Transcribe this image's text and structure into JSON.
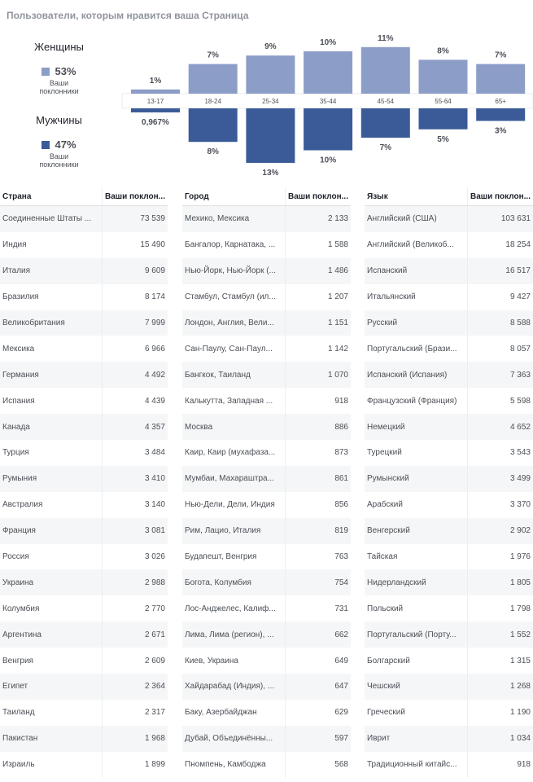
{
  "page_title": "Пользователи, которым нравится ваша Страница",
  "colors": {
    "women": "#8c9dc8",
    "men": "#3b5b98",
    "text": "#4b4f56"
  },
  "women": {
    "label": "Женщины",
    "percent": "53%",
    "sub1": "Ваши",
    "sub2": "поклонники"
  },
  "men": {
    "label": "Мужчины",
    "percent": "47%",
    "sub1": "Ваши",
    "sub2": "поклонники"
  },
  "chart_data": {
    "type": "bar",
    "categories": [
      "13-17",
      "18-24",
      "25-34",
      "35-44",
      "45-54",
      "55-64",
      "65+"
    ],
    "series": [
      {
        "name": "Женщины",
        "values": [
          1,
          7,
          9,
          10,
          11,
          8,
          7
        ],
        "labels": [
          "1%",
          "7%",
          "9%",
          "10%",
          "11%",
          "8%",
          "7%"
        ]
      },
      {
        "name": "Мужчины",
        "values": [
          0.967,
          8,
          13,
          10,
          7,
          5,
          3
        ],
        "labels": [
          "0,967%",
          "8%",
          "13%",
          "10%",
          "7%",
          "5%",
          "3%"
        ]
      }
    ]
  },
  "tables": [
    {
      "col1": "Страна",
      "col2": "Ваши поклон...",
      "rows": [
        [
          "Соединенные Штаты ...",
          "73 539"
        ],
        [
          "Индия",
          "15 490"
        ],
        [
          "Италия",
          "9 609"
        ],
        [
          "Бразилия",
          "8 174"
        ],
        [
          "Великобритания",
          "7 999"
        ],
        [
          "Мексика",
          "6 966"
        ],
        [
          "Германия",
          "4 492"
        ],
        [
          "Испания",
          "4 439"
        ],
        [
          "Канада",
          "4 357"
        ],
        [
          "Турция",
          "3 484"
        ],
        [
          "Румыния",
          "3 410"
        ],
        [
          "Австралия",
          "3 140"
        ],
        [
          "Франция",
          "3 081"
        ],
        [
          "Россия",
          "3 026"
        ],
        [
          "Украина",
          "2 988"
        ],
        [
          "Колумбия",
          "2 770"
        ],
        [
          "Аргентина",
          "2 671"
        ],
        [
          "Венгрия",
          "2 609"
        ],
        [
          "Египет",
          "2 364"
        ],
        [
          "Таиланд",
          "2 317"
        ],
        [
          "Пакистан",
          "1 968"
        ],
        [
          "Израиль",
          "1 899"
        ]
      ]
    },
    {
      "col1": "Город",
      "col2": "Ваши поклон...",
      "rows": [
        [
          "Мехико, Мексика",
          "2 133"
        ],
        [
          "Бангалор, Карнатака, ...",
          "1 588"
        ],
        [
          "Нью-Йорк, Нью-Йорк (...",
          "1 486"
        ],
        [
          "Стамбул, Стамбул (ил...",
          "1 207"
        ],
        [
          "Лондон, Англия, Вели...",
          "1 151"
        ],
        [
          "Сан-Паулу, Сан-Паул...",
          "1 142"
        ],
        [
          "Бангкок, Таиланд",
          "1 070"
        ],
        [
          "Калькутта, Западная ...",
          "918"
        ],
        [
          "Москва",
          "886"
        ],
        [
          "Каир, Каир (мухафаза...",
          "873"
        ],
        [
          "Мумбаи, Махараштра...",
          "861"
        ],
        [
          "Нью-Дели, Дели, Индия",
          "856"
        ],
        [
          "Рим, Лацио, Италия",
          "819"
        ],
        [
          "Будапешт, Венгрия",
          "763"
        ],
        [
          "Богота, Колумбия",
          "754"
        ],
        [
          "Лос-Анджелес, Калиф...",
          "731"
        ],
        [
          "Лима, Лима (регион), ...",
          "662"
        ],
        [
          "Киев, Украина",
          "649"
        ],
        [
          "Хайдарабад (Индия), ...",
          "647"
        ],
        [
          "Баку, Азербайджан",
          "629"
        ],
        [
          "Дубай, Объединённы...",
          "597"
        ],
        [
          "Пномпень, Камбоджа",
          "568"
        ]
      ]
    },
    {
      "col1": "Язык",
      "col2": "Ваши поклон...",
      "rows": [
        [
          "Английский (США)",
          "103 631"
        ],
        [
          "Английский (Великоб...",
          "18 254"
        ],
        [
          "Испанский",
          "16 517"
        ],
        [
          "Итальянский",
          "9 427"
        ],
        [
          "Русский",
          "8 588"
        ],
        [
          "Португальский (Брази...",
          "8 057"
        ],
        [
          "Испанский (Испания)",
          "7 363"
        ],
        [
          "Французский (Франция)",
          "5 598"
        ],
        [
          "Немецкий",
          "4 652"
        ],
        [
          "Турецкий",
          "3 543"
        ],
        [
          "Румынский",
          "3 499"
        ],
        [
          "Арабский",
          "3 370"
        ],
        [
          "Венгерский",
          "2 902"
        ],
        [
          "Тайская",
          "1 976"
        ],
        [
          "Нидерландский",
          "1 805"
        ],
        [
          "Польский",
          "1 798"
        ],
        [
          "Португальский (Порту...",
          "1 552"
        ],
        [
          "Болгарский",
          "1 315"
        ],
        [
          "Чешский",
          "1 268"
        ],
        [
          "Греческий",
          "1 190"
        ],
        [
          "Иврит",
          "1 034"
        ],
        [
          "Традиционный китайс...",
          "918"
        ]
      ]
    }
  ]
}
